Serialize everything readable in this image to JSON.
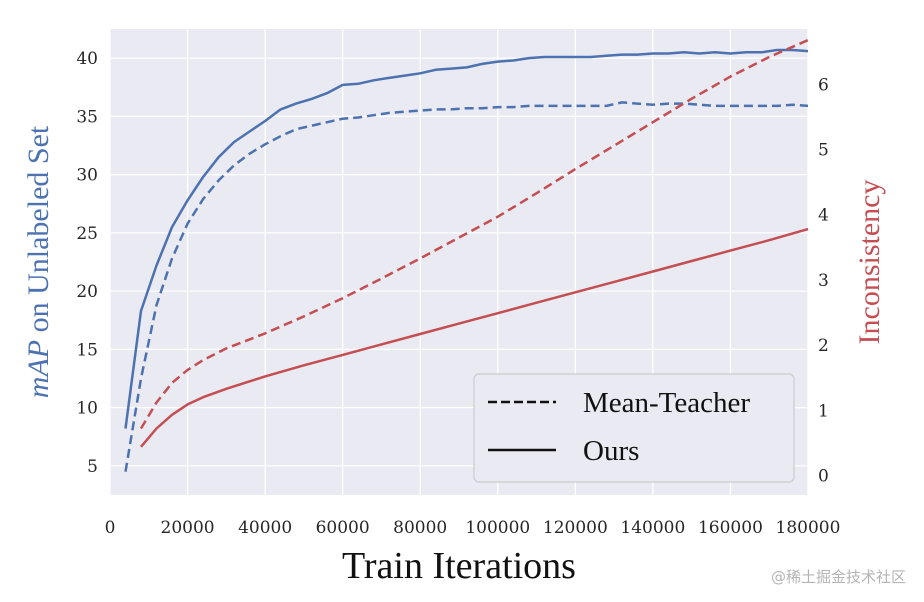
{
  "chart_data": {
    "type": "line",
    "xlabel": "Train Iterations",
    "ylabel_left": {
      "prefix": "mAP",
      "rest": " on Unlabeled Set"
    },
    "ylabel_right": "Inconsistency",
    "xlim": [
      0,
      180000
    ],
    "ylim_left": [
      2.5,
      42.5
    ],
    "ylim_right": [
      -0.3,
      6.85
    ],
    "x_ticks": [
      0,
      20000,
      40000,
      60000,
      80000,
      100000,
      120000,
      140000,
      160000,
      180000
    ],
    "y_left_ticks": [
      5,
      10,
      15,
      20,
      25,
      30,
      35,
      40
    ],
    "y_right_ticks": [
      0,
      1,
      2,
      3,
      4,
      5,
      6
    ],
    "grid": true,
    "legend": {
      "position": "lower-right",
      "entries": [
        {
          "label": "Mean-Teacher",
          "style": "dashed"
        },
        {
          "label": "Ours",
          "style": "solid"
        }
      ]
    },
    "colors": {
      "left_axis": "#4c72b0",
      "right_axis": "#c44e52",
      "background": "#eaeaf2",
      "grid": "#ffffff"
    },
    "series": [
      {
        "axis": "left",
        "style": "solid",
        "color": "#4c72b0",
        "x": [
          4000,
          8000,
          12000,
          16000,
          20000,
          24000,
          28000,
          32000,
          36000,
          40000,
          44000,
          48000,
          52000,
          56000,
          60000,
          64000,
          68000,
          72000,
          76000,
          80000,
          84000,
          88000,
          92000,
          96000,
          100000,
          104000,
          108000,
          112000,
          116000,
          120000,
          124000,
          128000,
          132000,
          136000,
          140000,
          144000,
          148000,
          152000,
          156000,
          160000,
          164000,
          168000,
          172000,
          176000,
          180000
        ],
        "y": [
          8.2,
          18.3,
          22.2,
          25.5,
          27.8,
          29.8,
          31.5,
          32.8,
          33.7,
          34.6,
          35.6,
          36.1,
          36.5,
          37.0,
          37.7,
          37.8,
          38.1,
          38.3,
          38.5,
          38.7,
          39.0,
          39.1,
          39.2,
          39.5,
          39.7,
          39.8,
          40.0,
          40.1,
          40.1,
          40.1,
          40.1,
          40.2,
          40.3,
          40.3,
          40.4,
          40.4,
          40.5,
          40.4,
          40.5,
          40.4,
          40.5,
          40.5,
          40.7,
          40.7,
          40.6
        ]
      },
      {
        "axis": "left",
        "style": "dashed",
        "color": "#4c72b0",
        "x": [
          4000,
          8000,
          12000,
          16000,
          20000,
          24000,
          28000,
          32000,
          36000,
          40000,
          44000,
          48000,
          52000,
          56000,
          60000,
          64000,
          68000,
          72000,
          76000,
          80000,
          84000,
          88000,
          92000,
          96000,
          100000,
          104000,
          108000,
          112000,
          116000,
          120000,
          124000,
          128000,
          132000,
          136000,
          140000,
          144000,
          148000,
          152000,
          156000,
          160000,
          164000,
          168000,
          172000,
          176000,
          180000
        ],
        "y": [
          4.5,
          12.5,
          18.8,
          22.8,
          25.8,
          27.9,
          29.5,
          30.8,
          31.8,
          32.6,
          33.3,
          33.9,
          34.2,
          34.5,
          34.8,
          34.9,
          35.1,
          35.3,
          35.4,
          35.5,
          35.6,
          35.6,
          35.7,
          35.7,
          35.8,
          35.8,
          35.9,
          35.9,
          35.9,
          35.9,
          35.9,
          35.9,
          36.2,
          36.1,
          36.0,
          36.1,
          36.1,
          36.0,
          35.9,
          35.9,
          35.9,
          35.9,
          35.9,
          36.0,
          35.9
        ]
      },
      {
        "axis": "right",
        "style": "dashed",
        "color": "#c44e52",
        "x": [
          8000,
          12000,
          16000,
          20000,
          24000,
          30000,
          40000,
          50000,
          60000,
          70000,
          80000,
          90000,
          100000,
          110000,
          120000,
          130000,
          140000,
          150000,
          160000,
          170000,
          180000
        ],
        "y": [
          0.72,
          1.12,
          1.42,
          1.62,
          1.77,
          1.95,
          2.18,
          2.44,
          2.72,
          3.02,
          3.33,
          3.65,
          3.97,
          4.33,
          4.7,
          5.06,
          5.42,
          5.78,
          6.12,
          6.42,
          6.68
        ]
      },
      {
        "axis": "right",
        "style": "solid",
        "color": "#c44e52",
        "x": [
          8000,
          12000,
          16000,
          20000,
          24000,
          30000,
          40000,
          50000,
          60000,
          70000,
          80000,
          90000,
          100000,
          110000,
          120000,
          130000,
          140000,
          150000,
          160000,
          170000,
          180000
        ],
        "y": [
          0.44,
          0.72,
          0.93,
          1.09,
          1.2,
          1.33,
          1.52,
          1.69,
          1.85,
          2.01,
          2.17,
          2.33,
          2.49,
          2.65,
          2.81,
          2.97,
          3.13,
          3.29,
          3.45,
          3.61,
          3.78
        ]
      }
    ]
  },
  "watermark": "@稀土掘金技术社区"
}
